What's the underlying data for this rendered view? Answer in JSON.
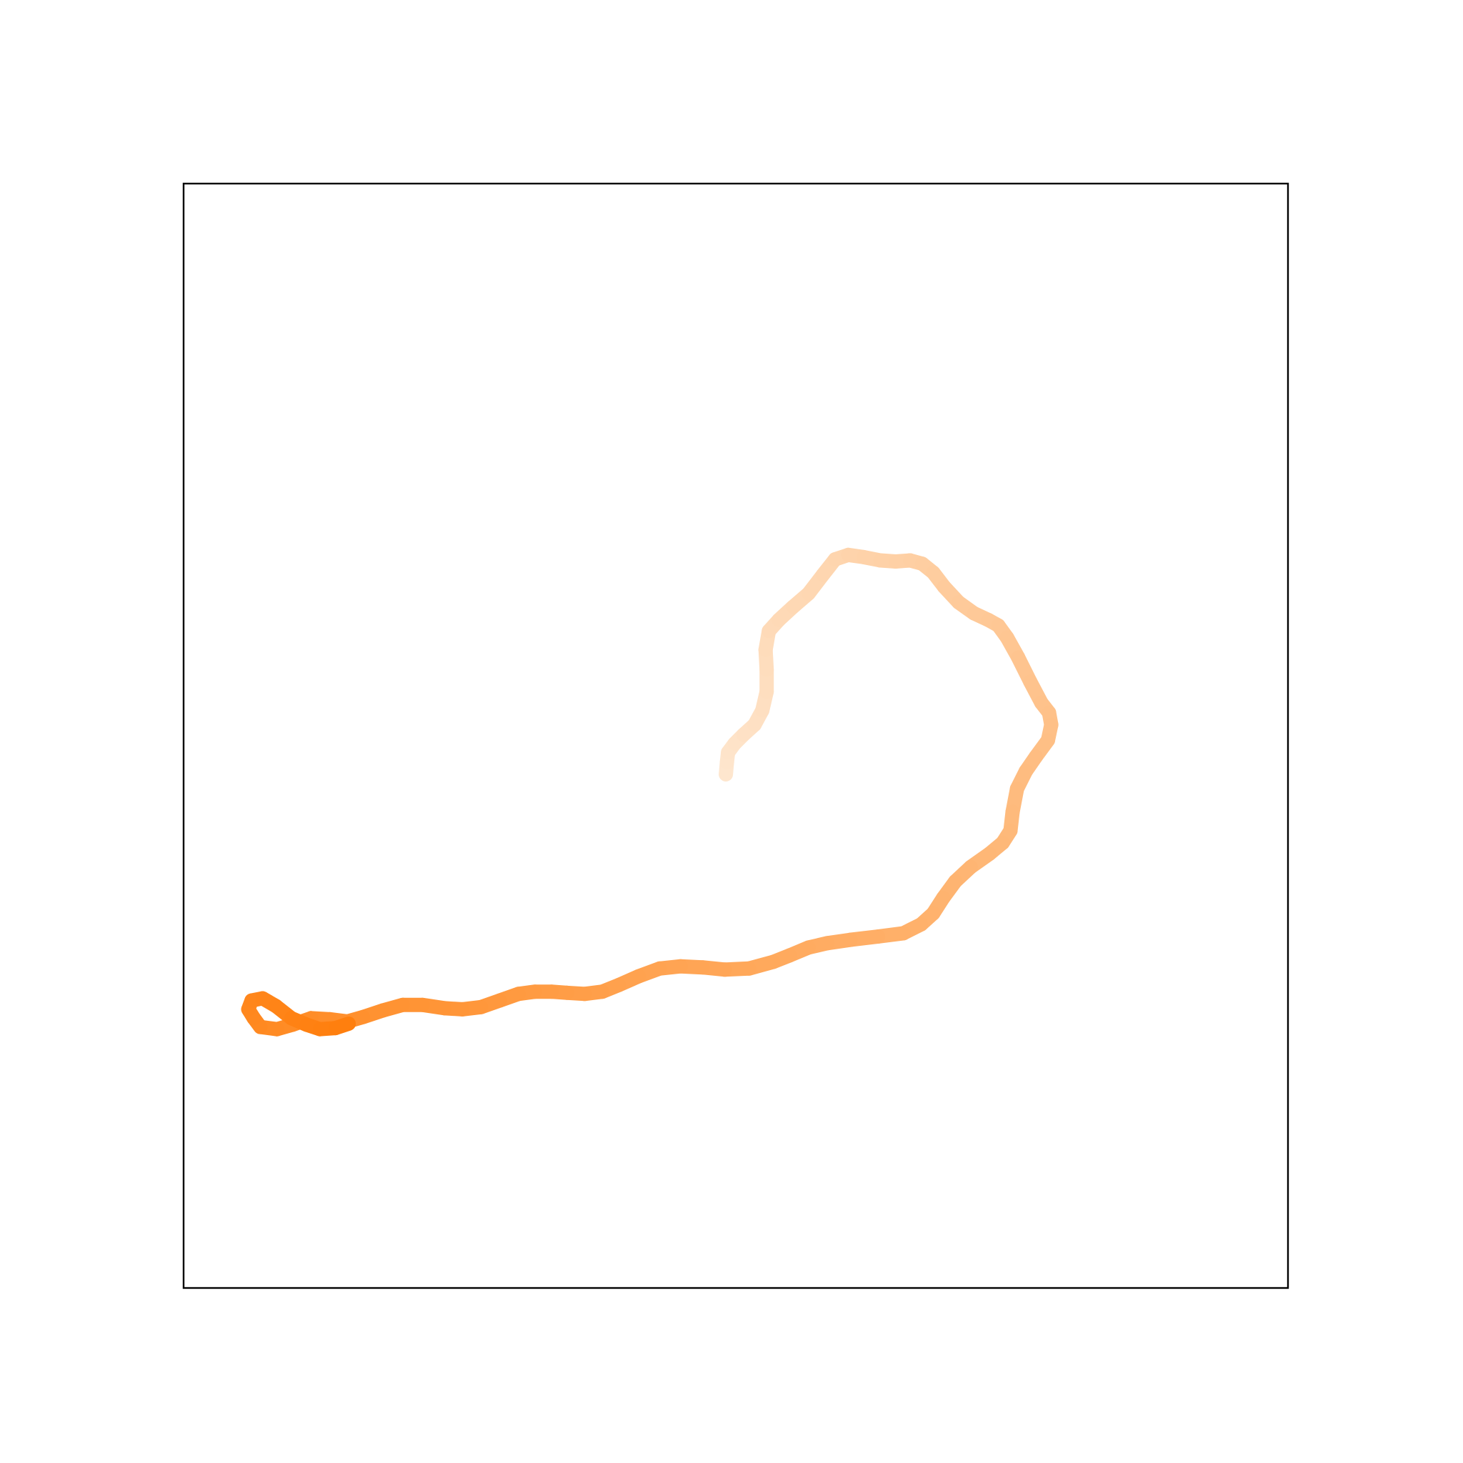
{
  "chart_data": {
    "type": "line",
    "title": "",
    "xlabel": "",
    "ylabel": "",
    "xlim": [
      0,
      1
    ],
    "ylim": [
      0,
      1
    ],
    "grid": false,
    "axis_ticks": false,
    "gradient": {
      "start_color": "#fee6ce",
      "end_color": "#ff7f0e"
    },
    "series": [
      {
        "x": [
          0.491,
          0.492,
          0.493,
          0.499,
          0.507,
          0.517,
          0.524,
          0.528,
          0.528,
          0.527,
          0.53,
          0.539,
          0.552,
          0.566,
          0.579,
          0.59,
          0.602,
          0.616,
          0.631,
          0.645,
          0.658,
          0.669,
          0.679,
          0.689,
          0.702,
          0.716,
          0.729,
          0.738,
          0.746,
          0.756,
          0.767,
          0.777,
          0.784,
          0.786,
          0.783,
          0.772,
          0.763,
          0.755,
          0.751,
          0.749,
          0.742,
          0.73,
          0.713,
          0.699,
          0.688,
          0.679,
          0.668,
          0.652,
          0.629,
          0.604,
          0.583,
          0.566,
          0.549,
          0.534,
          0.512,
          0.49,
          0.47,
          0.45,
          0.431,
          0.412,
          0.394,
          0.379,
          0.363,
          0.347,
          0.333,
          0.318,
          0.303,
          0.286,
          0.269,
          0.252,
          0.236,
          0.216,
          0.198,
          0.18,
          0.162,
          0.148,
          0.132,
          0.115,
          0.098,
          0.084,
          0.069,
          0.063,
          0.058,
          0.061,
          0.071,
          0.083,
          0.097,
          0.111,
          0.123,
          0.137,
          0.149
        ],
        "y": [
          0.465,
          0.476,
          0.485,
          0.493,
          0.501,
          0.51,
          0.523,
          0.54,
          0.56,
          0.578,
          0.595,
          0.605,
          0.617,
          0.629,
          0.646,
          0.66,
          0.664,
          0.662,
          0.659,
          0.658,
          0.659,
          0.656,
          0.648,
          0.635,
          0.621,
          0.611,
          0.605,
          0.6,
          0.589,
          0.571,
          0.549,
          0.53,
          0.521,
          0.51,
          0.496,
          0.481,
          0.468,
          0.452,
          0.431,
          0.414,
          0.403,
          0.393,
          0.381,
          0.368,
          0.353,
          0.339,
          0.329,
          0.321,
          0.318,
          0.315,
          0.312,
          0.308,
          0.301,
          0.295,
          0.289,
          0.288,
          0.29,
          0.291,
          0.289,
          0.282,
          0.274,
          0.268,
          0.266,
          0.267,
          0.268,
          0.268,
          0.266,
          0.26,
          0.254,
          0.252,
          0.253,
          0.256,
          0.256,
          0.251,
          0.245,
          0.241,
          0.243,
          0.244,
          0.238,
          0.234,
          0.236,
          0.244,
          0.252,
          0.26,
          0.262,
          0.255,
          0.244,
          0.238,
          0.234,
          0.235,
          0.239
        ]
      }
    ]
  }
}
